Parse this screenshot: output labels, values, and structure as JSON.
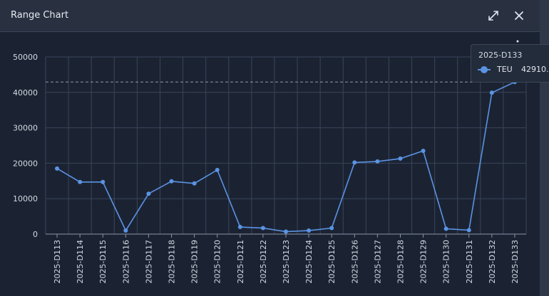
{
  "window": {
    "title": "Range Chart",
    "expand_icon": "expand-diagonal-icon",
    "close_icon": "close-icon",
    "menu_icon": "more-vertical-icon"
  },
  "colors": {
    "background": "#1b2333",
    "header": "#293141",
    "series": "#5b93e3",
    "grid": "#3a4558",
    "reference_line": "#8e99ab"
  },
  "tooltip": {
    "title": "2025-D133",
    "series": "TEU",
    "value": "42910.",
    "icon": "circle-marker-icon"
  },
  "chart_data": {
    "type": "line",
    "title": "",
    "xlabel": "",
    "ylabel": "",
    "ylim": [
      0,
      50000
    ],
    "yticks": [
      0,
      10000,
      20000,
      30000,
      40000,
      50000
    ],
    "grid": true,
    "categories": [
      "2025-D113",
      "2025-D114",
      "2025-D115",
      "2025-D116",
      "2025-D117",
      "2025-D118",
      "2025-D119",
      "2025-D120",
      "2025-D121",
      "2025-D122",
      "2025-D123",
      "2025-D124",
      "2025-D125",
      "2025-D126",
      "2025-D127",
      "2025-D128",
      "2025-D129",
      "2025-D130",
      "2025-D131",
      "2025-D132",
      "2025-D133"
    ],
    "series": [
      {
        "name": "TEU",
        "values": [
          18500,
          14700,
          14700,
          1000,
          11400,
          14900,
          14300,
          18100,
          2000,
          1700,
          700,
          1000,
          1700,
          20200,
          20500,
          21300,
          23500,
          1500,
          1100,
          39900,
          42910
        ]
      }
    ],
    "reference_line": 42910,
    "highlighted_category": "2025-D133"
  }
}
